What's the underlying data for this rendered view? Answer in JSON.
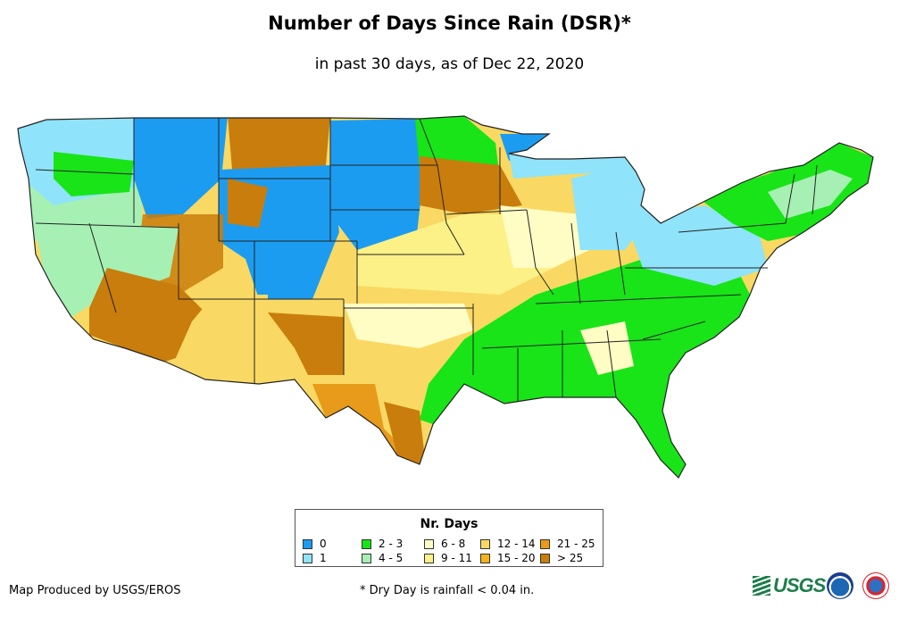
{
  "title": "Number of Days Since Rain (DSR)*",
  "subtitle": "in past 30 days, as of Dec 22, 2020",
  "legend": {
    "title": "Nr. Days",
    "items": [
      {
        "label": "0",
        "color": "#1c9cf0"
      },
      {
        "label": "1",
        "color": "#8fe3fa"
      },
      {
        "label": "2 - 3",
        "color": "#18e418"
      },
      {
        "label": "4 - 5",
        "color": "#a6f0b4"
      },
      {
        "label": "6 - 8",
        "color": "#fffcc4"
      },
      {
        "label": "9 - 11",
        "color": "#fbf187"
      },
      {
        "label": "12 - 14",
        "color": "#f9d963"
      },
      {
        "label": "15 - 20",
        "color": "#f5b31a"
      },
      {
        "label": "21 - 25",
        "color": "#e89a1a"
      },
      {
        "label": "> 25",
        "color": "#c97d0c"
      }
    ]
  },
  "footer": {
    "credit": "Map Produced by USGS/EROS",
    "note": "* Dry Day is rainfall < 0.04 in."
  },
  "logos": {
    "usgs_text": "USGS"
  }
}
